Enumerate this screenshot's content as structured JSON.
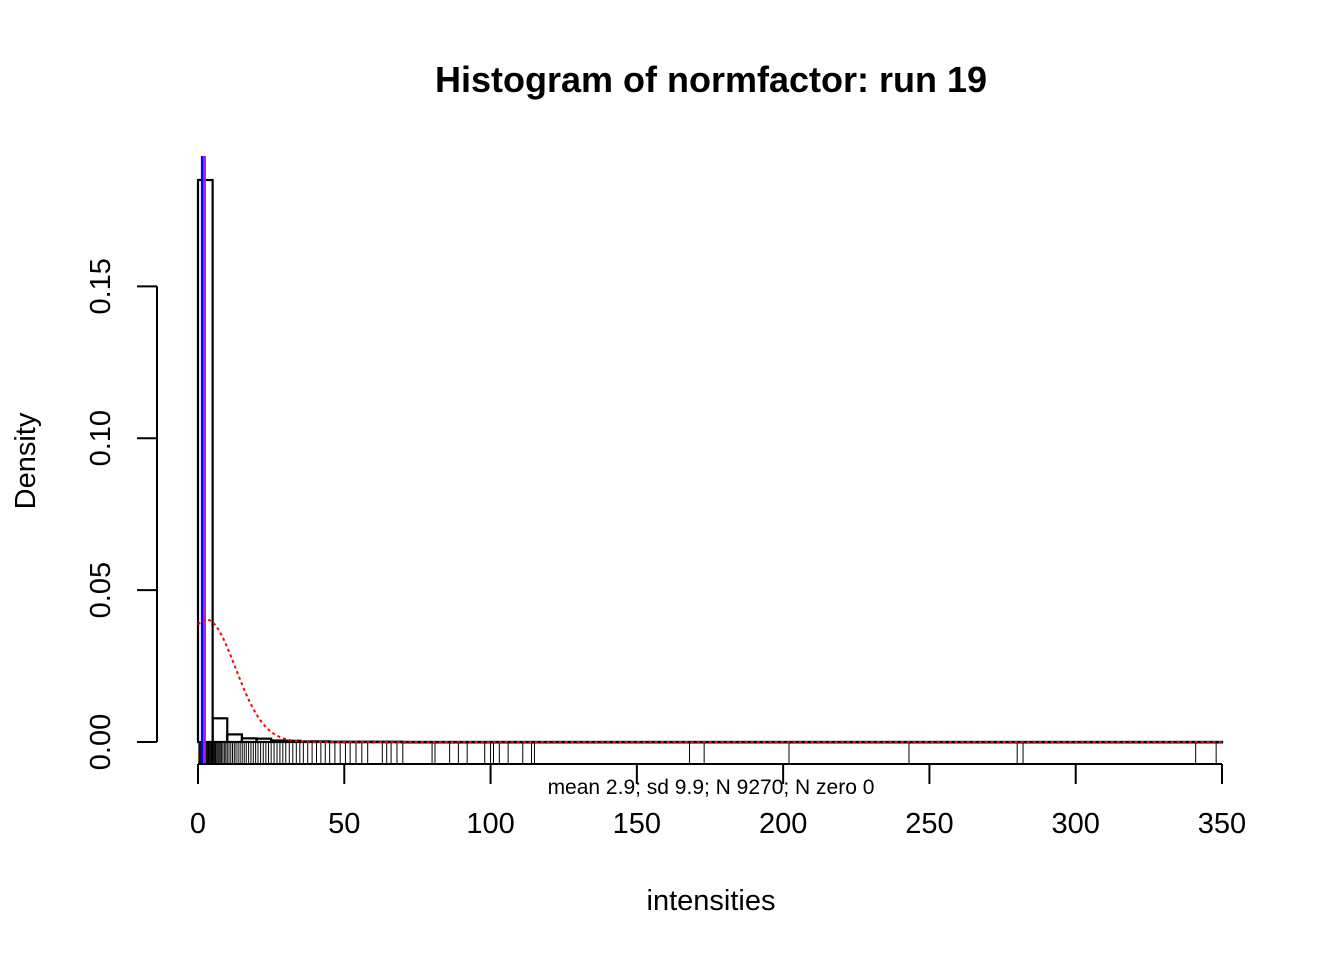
{
  "chart_data": {
    "type": "bar",
    "title": "Histogram of normfactor: run  19",
    "xlabel": "intensities",
    "ylabel": "Density",
    "subtitle": "mean 2.9; sd 9.9; N 9270; N zero 0",
    "xlim": [
      0,
      350
    ],
    "ylim": [
      0,
      0.185
    ],
    "x_ticks": [
      0,
      50,
      100,
      150,
      200,
      250,
      300,
      350
    ],
    "x_tick_labels": [
      "0",
      "50",
      "100",
      "150",
      "200",
      "250",
      "300",
      "350"
    ],
    "y_ticks": [
      0,
      0.05,
      0.1,
      0.15
    ],
    "y_tick_labels": [
      "0.00",
      "0.05",
      "0.10",
      "0.15"
    ],
    "bins": [
      {
        "x0": 0,
        "x1": 5,
        "density": 0.185
      },
      {
        "x0": 5,
        "x1": 10,
        "density": 0.0078
      },
      {
        "x0": 10,
        "x1": 15,
        "density": 0.0025
      },
      {
        "x0": 15,
        "x1": 20,
        "density": 0.0012
      },
      {
        "x0": 20,
        "x1": 25,
        "density": 0.0011
      },
      {
        "x0": 25,
        "x1": 30,
        "density": 0.0005
      },
      {
        "x0": 30,
        "x1": 35,
        "density": 0.0004
      },
      {
        "x0": 35,
        "x1": 40,
        "density": 0.0002
      },
      {
        "x0": 40,
        "x1": 45,
        "density": 0.0002
      },
      {
        "x0": 45,
        "x1": 50,
        "density": 0.0001
      },
      {
        "x0": 50,
        "x1": 55,
        "density": 0.0001
      },
      {
        "x0": 55,
        "x1": 60,
        "density": 0.0001
      },
      {
        "x0": 60,
        "x1": 65,
        "density": 0.0001
      },
      {
        "x0": 65,
        "x1": 70,
        "density": 0.0001
      },
      {
        "x0": 70,
        "x1": 350,
        "density": 3e-05
      }
    ],
    "normal_curve": {
      "mean": 2.9,
      "sd": 9.9,
      "color": "#ff0000",
      "style": "dotted"
    },
    "vertical_lines": [
      {
        "x": 1.5,
        "color": "#0000ff"
      },
      {
        "x": 2.2,
        "color": "#a020f0"
      }
    ],
    "rug": [
      0.3,
      0.6,
      0.9,
      1.2,
      1.5,
      1.8,
      2.1,
      2.4,
      2.7,
      3.0,
      3.3,
      3.6,
      3.9,
      4.2,
      4.5,
      4.8,
      5.1,
      5.4,
      5.7,
      6.0,
      6.4,
      6.8,
      7.2,
      7.6,
      8.0,
      8.5,
      9.0,
      9.5,
      10.0,
      10.6,
      11.2,
      11.8,
      12.4,
      13.0,
      13.7,
      14.4,
      15.1,
      15.8,
      16.5,
      17.3,
      18.1,
      18.9,
      19.7,
      20.5,
      21.4,
      22.3,
      23.2,
      24.1,
      25.0,
      26.0,
      27.0,
      28.0,
      29.0,
      30.0,
      31.2,
      32.4,
      33.6,
      34.8,
      36.0,
      37.5,
      39.0,
      40.5,
      42.0,
      43.5,
      45.0,
      46.8,
      48.6,
      50.4,
      52.0,
      54.0,
      56.0,
      58.0,
      63.0,
      64.5,
      66.0,
      68.0,
      70.0,
      80.0,
      81.0,
      86.0,
      89.0,
      92.0,
      98.0,
      100.0,
      101.0,
      103.0,
      106.0,
      111.0,
      114.0,
      115.0,
      168.0,
      173.0,
      202.0,
      243.0,
      280.0,
      282.0,
      341.0,
      348.0
    ],
    "colors": {
      "bars": "#000000",
      "normal_curve": "#ff0000",
      "line_blue": "#0000ff",
      "line_purple": "#a020f0"
    }
  }
}
